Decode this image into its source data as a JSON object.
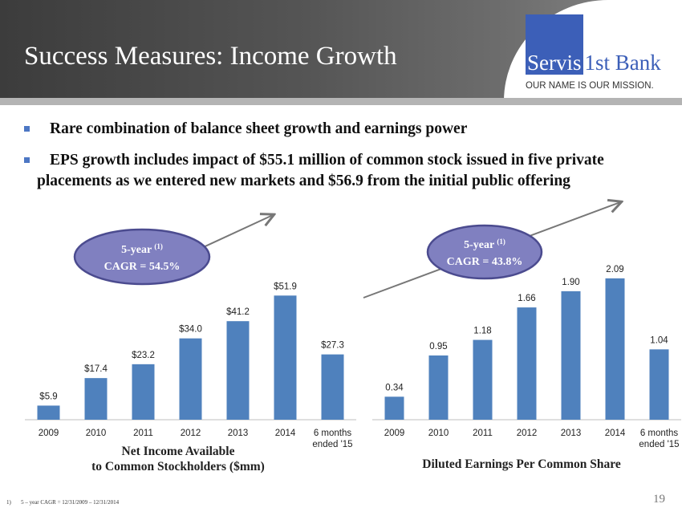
{
  "title": "Success Measures:  Income Growth",
  "logo": {
    "part1": "Servis",
    "part2": "1st Bank",
    "tagline": "OUR NAME IS OUR MISSION."
  },
  "bullets": [
    "Rare combination of balance sheet growth and earnings power",
    "EPS growth includes impact of $55.1 million of common stock issued in five private placements as we entered new markets and $56.9 from the initial public offering"
  ],
  "chart_data": [
    {
      "type": "bar",
      "categories": [
        "2009",
        "2010",
        "2011",
        "2012",
        "2013",
        "2014",
        "6 months ended '15"
      ],
      "values": [
        5.9,
        17.4,
        23.2,
        34.0,
        41.2,
        51.9,
        27.3
      ],
      "data_labels": [
        "$5.9",
        "$17.4",
        "$23.2",
        "$34.0",
        "$41.2",
        "$51.9",
        "$27.3"
      ],
      "title_lines": [
        "Net Income Available",
        "to Common Stockholders ($mm)"
      ],
      "callout": {
        "line1": "5-year",
        "superscript": "(1)",
        "line2": "CAGR = 54.5%"
      },
      "bar_color": "#4f81bd",
      "grid": false
    },
    {
      "type": "bar",
      "categories": [
        "2009",
        "2010",
        "2011",
        "2012",
        "2013",
        "2014",
        "6 months ended '15"
      ],
      "values": [
        0.34,
        0.95,
        1.18,
        1.66,
        1.9,
        2.09,
        1.04
      ],
      "data_labels": [
        "0.34",
        "0.95",
        "1.18",
        "1.66",
        "1.90",
        "2.09",
        "1.04"
      ],
      "title_lines": [
        "Diluted Earnings Per Common Share"
      ],
      "callout": {
        "line1": "5-year",
        "superscript": "(1)",
        "line2": "CAGR = 43.8%"
      },
      "bar_color": "#4f81bd",
      "grid": false
    }
  ],
  "footnote": {
    "marker": "1)",
    "text": "5 – year CAGR = 12/31/2009 – 12/31/2014"
  },
  "page_number": "19",
  "colors": {
    "accent": "#3c5fb8",
    "bar": "#4f81bd",
    "callout": "#8080c0"
  }
}
